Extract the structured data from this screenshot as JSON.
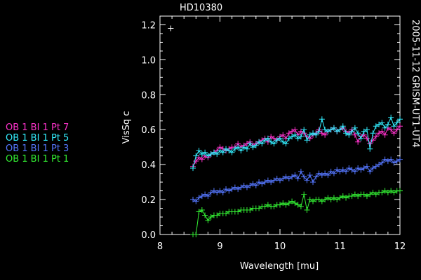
{
  "chart_data": {
    "type": "line",
    "title": "HD10380",
    "side_label": "2005-11-12 GRISM-UT1-UT4",
    "xlabel": "Wavelength [mu]",
    "ylabel": "VisSq c",
    "xlim": [
      8,
      12
    ],
    "ylim": [
      0,
      1.25
    ],
    "x_ticks": [
      "8",
      "9",
      "10",
      "11",
      "12"
    ],
    "y_ticks": [
      "0.0",
      "0.2",
      "0.4",
      "0.6",
      "0.8",
      "1.0",
      "1.2"
    ],
    "grid": false,
    "legend_position": "left",
    "outlier_point": {
      "x": 8.18,
      "y": 1.18
    },
    "series": [
      {
        "name": "OB 1 BI 1 Pt 7",
        "color": "#ff33cc",
        "x": [
          8.55,
          8.6,
          8.65,
          8.7,
          8.75,
          8.8,
          8.85,
          8.9,
          8.95,
          9.0,
          9.05,
          9.1,
          9.15,
          9.2,
          9.25,
          9.3,
          9.35,
          9.4,
          9.45,
          9.5,
          9.55,
          9.6,
          9.65,
          9.7,
          9.75,
          9.8,
          9.85,
          9.9,
          9.95,
          10.0,
          10.05,
          10.1,
          10.15,
          10.2,
          10.25,
          10.3,
          10.35,
          10.4,
          10.45,
          10.5,
          10.55,
          10.6,
          10.65,
          10.7,
          10.75,
          10.8,
          10.85,
          10.9,
          10.95,
          11.0,
          11.05,
          11.1,
          11.15,
          11.2,
          11.25,
          11.3,
          11.35,
          11.4,
          11.45,
          11.5,
          11.55,
          11.6,
          11.65,
          11.7,
          11.75,
          11.8,
          11.85,
          11.9,
          11.95,
          12.0
        ],
        "y": [
          0.39,
          0.42,
          0.44,
          0.43,
          0.45,
          0.44,
          0.46,
          0.47,
          0.48,
          0.5,
          0.49,
          0.48,
          0.49,
          0.5,
          0.5,
          0.52,
          0.5,
          0.51,
          0.52,
          0.53,
          0.51,
          0.52,
          0.53,
          0.54,
          0.55,
          0.53,
          0.56,
          0.55,
          0.54,
          0.56,
          0.57,
          0.55,
          0.58,
          0.59,
          0.6,
          0.57,
          0.59,
          0.58,
          0.56,
          0.55,
          0.57,
          0.58,
          0.6,
          0.58,
          0.57,
          0.59,
          0.6,
          0.61,
          0.59,
          0.6,
          0.61,
          0.59,
          0.58,
          0.6,
          0.57,
          0.53,
          0.56,
          0.57,
          0.55,
          0.52,
          0.54,
          0.56,
          0.58,
          0.59,
          0.57,
          0.61,
          0.6,
          0.58,
          0.6,
          0.62
        ]
      },
      {
        "name": "OB 1 BI 1 Pt 5",
        "color": "#33eeff",
        "x": [
          8.55,
          8.6,
          8.65,
          8.7,
          8.75,
          8.8,
          8.85,
          8.9,
          8.95,
          9.0,
          9.05,
          9.1,
          9.15,
          9.2,
          9.25,
          9.3,
          9.35,
          9.4,
          9.45,
          9.5,
          9.55,
          9.6,
          9.65,
          9.7,
          9.75,
          9.8,
          9.85,
          9.9,
          9.95,
          10.0,
          10.05,
          10.1,
          10.15,
          10.2,
          10.25,
          10.3,
          10.35,
          10.4,
          10.45,
          10.5,
          10.55,
          10.6,
          10.65,
          10.7,
          10.75,
          10.8,
          10.85,
          10.9,
          10.95,
          11.0,
          11.05,
          11.1,
          11.15,
          11.2,
          11.25,
          11.3,
          11.35,
          11.4,
          11.45,
          11.5,
          11.55,
          11.6,
          11.65,
          11.7,
          11.75,
          11.8,
          11.85,
          11.9,
          11.95,
          12.0
        ],
        "y": [
          0.38,
          0.45,
          0.48,
          0.46,
          0.47,
          0.45,
          0.46,
          0.47,
          0.46,
          0.48,
          0.47,
          0.49,
          0.48,
          0.47,
          0.49,
          0.5,
          0.48,
          0.5,
          0.49,
          0.52,
          0.5,
          0.51,
          0.53,
          0.52,
          0.54,
          0.55,
          0.53,
          0.52,
          0.54,
          0.55,
          0.53,
          0.52,
          0.55,
          0.56,
          0.57,
          0.55,
          0.56,
          0.6,
          0.54,
          0.57,
          0.58,
          0.57,
          0.59,
          0.66,
          0.6,
          0.59,
          0.6,
          0.61,
          0.59,
          0.6,
          0.62,
          0.58,
          0.57,
          0.59,
          0.61,
          0.58,
          0.55,
          0.59,
          0.6,
          0.49,
          0.58,
          0.62,
          0.63,
          0.64,
          0.61,
          0.63,
          0.67,
          0.62,
          0.64,
          0.66
        ]
      },
      {
        "name": "OB 1 BI 1 Pt 3",
        "color": "#5577ff",
        "x": [
          8.55,
          8.6,
          8.65,
          8.7,
          8.75,
          8.8,
          8.85,
          8.9,
          8.95,
          9.0,
          9.05,
          9.1,
          9.15,
          9.2,
          9.25,
          9.3,
          9.35,
          9.4,
          9.45,
          9.5,
          9.55,
          9.6,
          9.65,
          9.7,
          9.75,
          9.8,
          9.85,
          9.9,
          9.95,
          10.0,
          10.05,
          10.1,
          10.15,
          10.2,
          10.25,
          10.3,
          10.35,
          10.4,
          10.45,
          10.5,
          10.55,
          10.6,
          10.65,
          10.7,
          10.75,
          10.8,
          10.85,
          10.9,
          10.95,
          11.0,
          11.05,
          11.1,
          11.15,
          11.2,
          11.25,
          11.3,
          11.35,
          11.4,
          11.45,
          11.5,
          11.55,
          11.6,
          11.65,
          11.7,
          11.75,
          11.8,
          11.85,
          11.9,
          11.95,
          12.0
        ],
        "y": [
          0.2,
          0.19,
          0.21,
          0.22,
          0.23,
          0.22,
          0.24,
          0.25,
          0.24,
          0.25,
          0.24,
          0.26,
          0.25,
          0.26,
          0.27,
          0.26,
          0.27,
          0.28,
          0.27,
          0.28,
          0.29,
          0.28,
          0.3,
          0.29,
          0.3,
          0.31,
          0.3,
          0.31,
          0.32,
          0.31,
          0.32,
          0.33,
          0.32,
          0.33,
          0.34,
          0.32,
          0.36,
          0.33,
          0.31,
          0.34,
          0.3,
          0.33,
          0.35,
          0.34,
          0.35,
          0.34,
          0.36,
          0.35,
          0.37,
          0.36,
          0.37,
          0.36,
          0.38,
          0.37,
          0.36,
          0.38,
          0.37,
          0.38,
          0.39,
          0.36,
          0.38,
          0.39,
          0.4,
          0.41,
          0.43,
          0.42,
          0.43,
          0.41,
          0.42,
          0.43
        ]
      },
      {
        "name": "OB 1 BI 1 Pt 1",
        "color": "#33ee33",
        "x": [
          8.55,
          8.6,
          8.65,
          8.7,
          8.75,
          8.8,
          8.85,
          8.9,
          8.95,
          9.0,
          9.05,
          9.1,
          9.15,
          9.2,
          9.25,
          9.3,
          9.35,
          9.4,
          9.45,
          9.5,
          9.55,
          9.6,
          9.65,
          9.7,
          9.75,
          9.8,
          9.85,
          9.9,
          9.95,
          10.0,
          10.05,
          10.1,
          10.15,
          10.2,
          10.25,
          10.3,
          10.35,
          10.4,
          10.45,
          10.5,
          10.55,
          10.6,
          10.65,
          10.7,
          10.75,
          10.8,
          10.85,
          10.9,
          10.95,
          11.0,
          11.05,
          11.1,
          11.15,
          11.2,
          11.25,
          11.3,
          11.35,
          11.4,
          11.45,
          11.5,
          11.55,
          11.6,
          11.65,
          11.7,
          11.75,
          11.8,
          11.85,
          11.9,
          11.95,
          12.0
        ],
        "y": [
          0.0,
          0.0,
          0.13,
          0.14,
          0.11,
          0.08,
          0.1,
          0.11,
          0.11,
          0.12,
          0.12,
          0.12,
          0.13,
          0.13,
          0.13,
          0.13,
          0.14,
          0.14,
          0.14,
          0.14,
          0.15,
          0.15,
          0.15,
          0.16,
          0.16,
          0.17,
          0.16,
          0.16,
          0.17,
          0.17,
          0.18,
          0.17,
          0.18,
          0.19,
          0.18,
          0.17,
          0.16,
          0.23,
          0.14,
          0.2,
          0.19,
          0.2,
          0.2,
          0.19,
          0.2,
          0.21,
          0.2,
          0.21,
          0.2,
          0.21,
          0.22,
          0.21,
          0.22,
          0.22,
          0.23,
          0.22,
          0.23,
          0.23,
          0.22,
          0.23,
          0.24,
          0.23,
          0.24,
          0.24,
          0.25,
          0.24,
          0.25,
          0.24,
          0.25,
          0.25
        ]
      }
    ]
  }
}
